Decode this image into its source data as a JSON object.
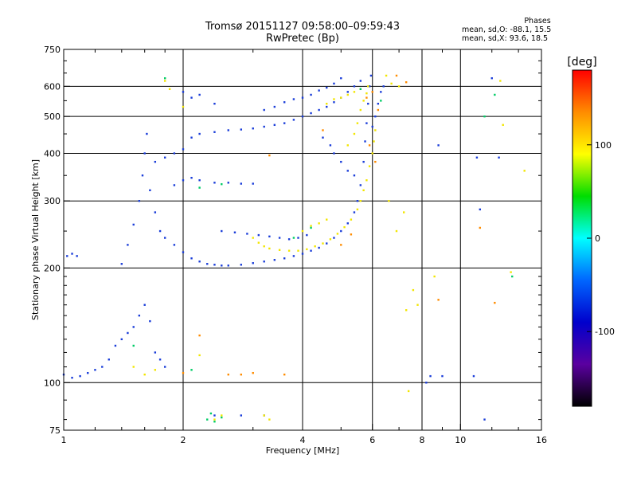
{
  "header": {
    "title_line1": "Tromsø 20151127 09:58:00–09:59:43",
    "title_line2": "RwPretec (Bp)"
  },
  "phase_box": {
    "heading": "Phases",
    "line_o": "mean, sd,O: -88.1, 15.5",
    "line_x": "mean, sd,X:  93.6, 18.5"
  },
  "chart_data": {
    "type": "scatter",
    "title": "Tromsø 20151127 09:58:00–09:59:43",
    "subtitle": "RwPretec (Bp)",
    "xlabel": "Frequency [MHz]",
    "ylabel": "Stationary phase Virtual Height [km]",
    "x_scale": "log",
    "y_scale": "log",
    "xlim": [
      1,
      16
    ],
    "ylim": [
      75,
      750
    ],
    "x_ticks": [
      {
        "value": 1,
        "label": "1"
      },
      {
        "value": 2,
        "label": "2"
      },
      {
        "value": 4,
        "label": "4"
      },
      {
        "value": 6,
        "label": "6"
      },
      {
        "value": 8,
        "label": "8"
      },
      {
        "value": 10,
        "label": "10"
      },
      {
        "value": 16,
        "label": "16"
      }
    ],
    "y_ticks": [
      {
        "value": 75,
        "label": "75"
      },
      {
        "value": 100,
        "label": "100"
      },
      {
        "value": 200,
        "label": "200"
      },
      {
        "value": 300,
        "label": "300"
      },
      {
        "value": 400,
        "label": "400"
      },
      {
        "value": 500,
        "label": "500"
      },
      {
        "value": 600,
        "label": "600"
      },
      {
        "value": 750,
        "label": "750"
      }
    ],
    "x_grid": [
      2,
      4,
      6,
      8,
      10
    ],
    "y_grid": [
      100,
      200,
      300,
      400,
      500,
      600
    ],
    "grid": true,
    "colorbar": {
      "label": "[deg]",
      "range": [
        -180,
        180
      ],
      "ticks": [
        {
          "value": 100,
          "label": "100"
        },
        {
          "value": 0,
          "label": "0"
        },
        {
          "value": -100,
          "label": "-100"
        }
      ],
      "stops": [
        "#ff0000",
        "#ff8c00",
        "#ffff00",
        "#00dd00",
        "#00ffff",
        "#0066ff",
        "#0000cc",
        "#5a00a0",
        "#000000"
      ]
    },
    "series": [
      {
        "name": "O-mode",
        "color": "#1a3dd9",
        "points": [
          [
            1.02,
            215
          ],
          [
            1.05,
            218
          ],
          [
            1.08,
            215
          ],
          [
            1.0,
            105
          ],
          [
            1.05,
            103
          ],
          [
            1.1,
            104
          ],
          [
            1.15,
            106
          ],
          [
            1.2,
            108
          ],
          [
            1.25,
            110
          ],
          [
            1.3,
            115
          ],
          [
            1.35,
            125
          ],
          [
            1.4,
            130
          ],
          [
            1.45,
            135
          ],
          [
            1.5,
            140
          ],
          [
            1.55,
            150
          ],
          [
            1.6,
            160
          ],
          [
            1.65,
            145
          ],
          [
            1.7,
            120
          ],
          [
            1.75,
            115
          ],
          [
            1.8,
            110
          ],
          [
            1.4,
            205
          ],
          [
            1.45,
            230
          ],
          [
            1.5,
            260
          ],
          [
            1.55,
            300
          ],
          [
            1.58,
            350
          ],
          [
            1.6,
            400
          ],
          [
            1.62,
            450
          ],
          [
            1.65,
            320
          ],
          [
            1.7,
            280
          ],
          [
            1.75,
            250
          ],
          [
            1.8,
            240
          ],
          [
            1.9,
            230
          ],
          [
            2.0,
            220
          ],
          [
            2.1,
            212
          ],
          [
            2.2,
            208
          ],
          [
            2.3,
            205
          ],
          [
            2.4,
            204
          ],
          [
            2.5,
            203
          ],
          [
            2.6,
            203
          ],
          [
            2.8,
            204
          ],
          [
            3.0,
            206
          ],
          [
            3.2,
            208
          ],
          [
            3.4,
            210
          ],
          [
            3.6,
            212
          ],
          [
            3.8,
            215
          ],
          [
            4.0,
            218
          ],
          [
            4.2,
            222
          ],
          [
            4.4,
            226
          ],
          [
            4.6,
            232
          ],
          [
            4.8,
            240
          ],
          [
            5.0,
            250
          ],
          [
            5.2,
            262
          ],
          [
            5.4,
            280
          ],
          [
            5.5,
            300
          ],
          [
            5.6,
            330
          ],
          [
            5.7,
            380
          ],
          [
            5.75,
            430
          ],
          [
            5.8,
            480
          ],
          [
            5.85,
            540
          ],
          [
            5.9,
            600
          ],
          [
            5.95,
            640
          ],
          [
            1.9,
            330
          ],
          [
            2.0,
            340
          ],
          [
            2.1,
            345
          ],
          [
            2.2,
            340
          ],
          [
            2.4,
            335
          ],
          [
            2.6,
            335
          ],
          [
            2.8,
            333
          ],
          [
            3.0,
            333
          ],
          [
            1.7,
            380
          ],
          [
            1.8,
            390
          ],
          [
            1.9,
            400
          ],
          [
            2.0,
            410
          ],
          [
            2.1,
            440
          ],
          [
            2.2,
            450
          ],
          [
            2.4,
            455
          ],
          [
            2.6,
            460
          ],
          [
            2.8,
            462
          ],
          [
            3.0,
            465
          ],
          [
            3.2,
            470
          ],
          [
            3.4,
            475
          ],
          [
            3.6,
            480
          ],
          [
            3.8,
            490
          ],
          [
            4.0,
            500
          ],
          [
            4.2,
            510
          ],
          [
            4.4,
            520
          ],
          [
            4.6,
            530
          ],
          [
            4.8,
            545
          ],
          [
            5.0,
            560
          ],
          [
            5.2,
            580
          ],
          [
            5.4,
            600
          ],
          [
            5.6,
            620
          ],
          [
            2.0,
            580
          ],
          [
            2.1,
            560
          ],
          [
            2.2,
            570
          ],
          [
            2.4,
            540
          ],
          [
            3.2,
            520
          ],
          [
            3.4,
            530
          ],
          [
            3.6,
            545
          ],
          [
            3.8,
            555
          ],
          [
            4.0,
            560
          ],
          [
            4.2,
            570
          ],
          [
            4.4,
            585
          ],
          [
            4.6,
            595
          ],
          [
            4.8,
            610
          ],
          [
            5.0,
            630
          ],
          [
            4.8,
            400
          ],
          [
            5.0,
            380
          ],
          [
            5.2,
            360
          ],
          [
            5.4,
            350
          ],
          [
            4.5,
            440
          ],
          [
            4.7,
            420
          ],
          [
            6.0,
            470
          ],
          [
            6.1,
            500
          ],
          [
            6.2,
            540
          ],
          [
            6.3,
            580
          ],
          [
            6.4,
            600
          ],
          [
            2.5,
            250
          ],
          [
            2.7,
            248
          ],
          [
            2.9,
            246
          ],
          [
            3.1,
            244
          ],
          [
            3.3,
            242
          ],
          [
            3.5,
            240
          ],
          [
            3.7,
            238
          ],
          [
            3.9,
            240
          ],
          [
            4.1,
            244
          ],
          [
            8.4,
            104
          ],
          [
            9.0,
            104
          ],
          [
            10.8,
            104
          ],
          [
            11.2,
            285
          ],
          [
            11.0,
            390
          ],
          [
            12.0,
            630
          ],
          [
            8.2,
            100
          ],
          [
            11.5,
            80
          ],
          [
            8.8,
            420
          ],
          [
            12.5,
            390
          ],
          [
            2.4,
            82
          ],
          [
            2.8,
            82
          ],
          [
            3.2,
            82
          ]
        ]
      },
      {
        "name": "X-mode",
        "color": "#f2e600",
        "points": [
          [
            3.3,
            225
          ],
          [
            3.5,
            223
          ],
          [
            3.7,
            222
          ],
          [
            3.9,
            222
          ],
          [
            4.1,
            224
          ],
          [
            4.3,
            228
          ],
          [
            4.5,
            232
          ],
          [
            4.7,
            238
          ],
          [
            4.9,
            246
          ],
          [
            5.1,
            256
          ],
          [
            5.3,
            268
          ],
          [
            5.5,
            285
          ],
          [
            5.6,
            300
          ],
          [
            5.7,
            320
          ],
          [
            5.8,
            340
          ],
          [
            5.9,
            370
          ],
          [
            6.0,
            400
          ],
          [
            6.05,
            430
          ],
          [
            6.1,
            460
          ],
          [
            5.2,
            420
          ],
          [
            5.4,
            450
          ],
          [
            5.5,
            480
          ],
          [
            5.6,
            520
          ],
          [
            5.7,
            550
          ],
          [
            5.8,
            575
          ],
          [
            5.85,
            600
          ],
          [
            4.6,
            540
          ],
          [
            4.8,
            555
          ],
          [
            5.0,
            560
          ],
          [
            5.2,
            570
          ],
          [
            5.4,
            580
          ],
          [
            5.6,
            590
          ],
          [
            6.5,
            640
          ],
          [
            6.7,
            610
          ],
          [
            7.0,
            600
          ],
          [
            4.0,
            250
          ],
          [
            4.2,
            258
          ],
          [
            4.4,
            262
          ],
          [
            4.6,
            268
          ],
          [
            3.0,
            240
          ],
          [
            3.1,
            233
          ],
          [
            3.2,
            228
          ],
          [
            1.8,
            620
          ],
          [
            1.85,
            590
          ],
          [
            2.0,
            530
          ],
          [
            1.6,
            105
          ],
          [
            1.7,
            108
          ],
          [
            2.4,
            80
          ],
          [
            2.5,
            82
          ],
          [
            3.2,
            82
          ],
          [
            3.3,
            80
          ],
          [
            7.4,
            95
          ],
          [
            7.6,
            175
          ],
          [
            7.8,
            160
          ],
          [
            8.6,
            190
          ],
          [
            12.8,
            475
          ],
          [
            12.6,
            620
          ],
          [
            14.5,
            360
          ],
          [
            13.4,
            195
          ],
          [
            7.3,
            155
          ],
          [
            2.2,
            118
          ],
          [
            1.5,
            110
          ],
          [
            6.6,
            300
          ],
          [
            7.2,
            280
          ],
          [
            6.9,
            250
          ]
        ]
      },
      {
        "name": "mixed-phase",
        "color": "#ff8c00",
        "points": [
          [
            5.8,
            560
          ],
          [
            6.0,
            580
          ],
          [
            5.9,
            420
          ],
          [
            6.1,
            380
          ],
          [
            5.0,
            230
          ],
          [
            5.3,
            245
          ],
          [
            2.6,
            105
          ],
          [
            2.8,
            105
          ],
          [
            3.0,
            106
          ],
          [
            3.6,
            105
          ],
          [
            2.2,
            133
          ],
          [
            6.9,
            640
          ],
          [
            7.3,
            615
          ],
          [
            12.2,
            162
          ],
          [
            11.2,
            255
          ],
          [
            3.3,
            395
          ],
          [
            4.5,
            460
          ],
          [
            6.2,
            520
          ],
          [
            8.8,
            165
          ],
          [
            2.0,
            106
          ]
        ]
      },
      {
        "name": "green-cyan",
        "color": "#00cc66",
        "points": [
          [
            2.3,
            80
          ],
          [
            2.4,
            79
          ],
          [
            2.5,
            81
          ],
          [
            2.35,
            83
          ],
          [
            1.8,
            630
          ],
          [
            11.5,
            500
          ],
          [
            13.5,
            190
          ],
          [
            12.2,
            570
          ],
          [
            1.5,
            125
          ],
          [
            2.1,
            108
          ],
          [
            3.8,
            240
          ],
          [
            4.2,
            255
          ],
          [
            5.6,
            590
          ],
          [
            6.3,
            550
          ],
          [
            2.2,
            325
          ],
          [
            2.5,
            332
          ]
        ]
      }
    ]
  }
}
